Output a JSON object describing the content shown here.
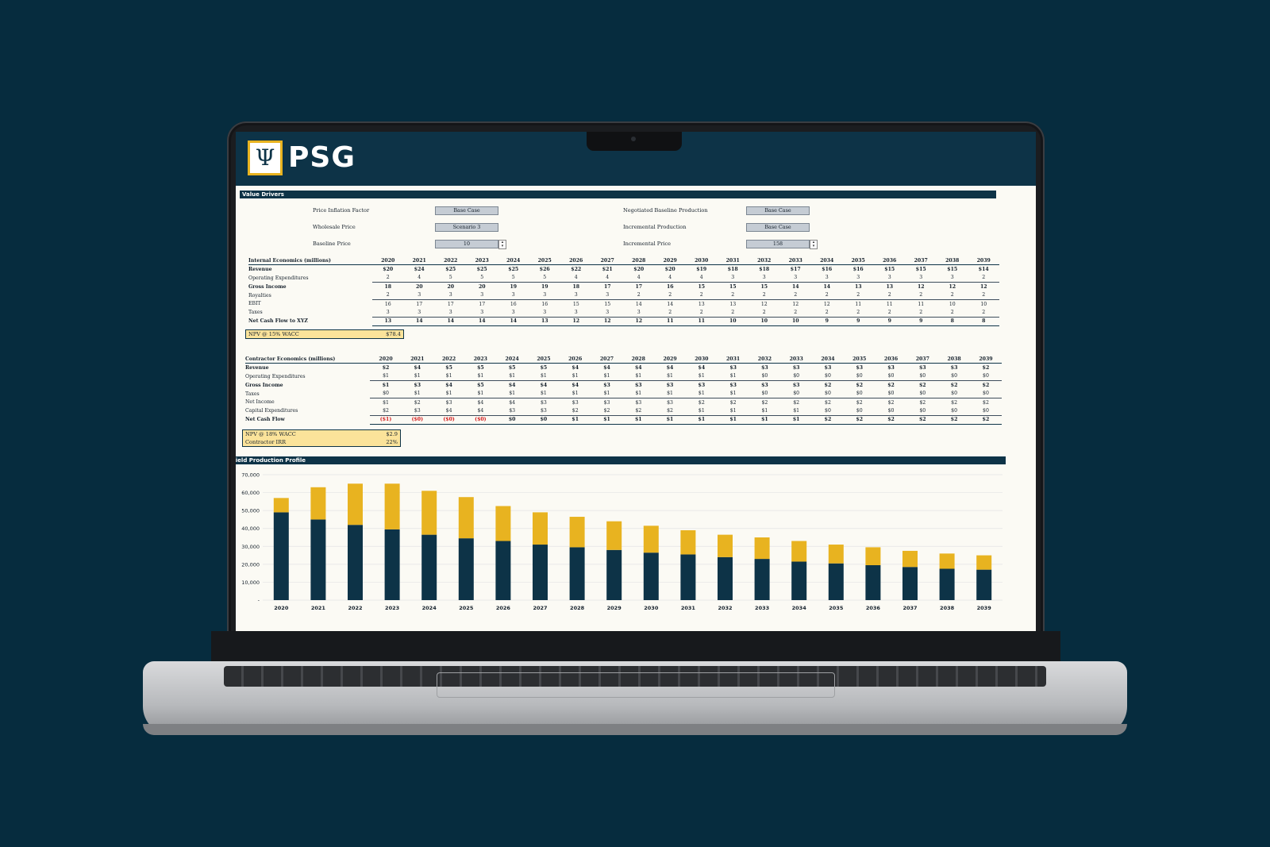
{
  "brand": {
    "name": "PSG",
    "logo_glyph": "Ψ",
    "accent": "#e8b320",
    "navy": "#0d3347"
  },
  "value_drivers": {
    "title": "Value Drivers",
    "left": [
      {
        "label": "Price Inflation Factor",
        "value": "Base Case"
      },
      {
        "label": "Wholesale Price",
        "value": "Scenario 3"
      },
      {
        "label": "Baseline Price",
        "value": "10"
      }
    ],
    "right": [
      {
        "label": "Negotiated Baseline Production",
        "value": "Base Case"
      },
      {
        "label": "Incremental Production",
        "value": "Base Case"
      },
      {
        "label": "Incremental Price",
        "value": "158"
      }
    ]
  },
  "internal": {
    "title": "Internal Economics (millions)",
    "years": [
      "2020",
      "2021",
      "2022",
      "2023",
      "2024",
      "2025",
      "2026",
      "2027",
      "2028",
      "2029",
      "2030",
      "2031",
      "2032",
      "2033",
      "2034",
      "2035",
      "2036",
      "2037",
      "2038",
      "2039"
    ],
    "rows": [
      {
        "label": "Revenue",
        "values": [
          "$20",
          "$24",
          "$25",
          "$25",
          "$25",
          "$26",
          "$22",
          "$21",
          "$20",
          "$20",
          "$19",
          "$18",
          "$18",
          "$17",
          "$16",
          "$16",
          "$15",
          "$15",
          "$15",
          "$14"
        ]
      },
      {
        "label": "Operating Expenditures",
        "values": [
          "2",
          "4",
          "5",
          "5",
          "5",
          "5",
          "4",
          "4",
          "4",
          "4",
          "4",
          "3",
          "3",
          "3",
          "3",
          "3",
          "3",
          "3",
          "3",
          "2"
        ]
      },
      {
        "label": "Gross Income",
        "values": [
          "18",
          "20",
          "20",
          "20",
          "19",
          "19",
          "18",
          "17",
          "17",
          "16",
          "15",
          "15",
          "15",
          "14",
          "14",
          "13",
          "13",
          "12",
          "12",
          "12"
        ]
      },
      {
        "label": "Royalties",
        "values": [
          "2",
          "3",
          "3",
          "3",
          "3",
          "3",
          "3",
          "3",
          "2",
          "2",
          "2",
          "2",
          "2",
          "2",
          "2",
          "2",
          "2",
          "2",
          "2",
          "2"
        ]
      },
      {
        "label": "EBIT",
        "values": [
          "16",
          "17",
          "17",
          "17",
          "16",
          "16",
          "15",
          "15",
          "14",
          "14",
          "13",
          "13",
          "12",
          "12",
          "12",
          "11",
          "11",
          "11",
          "10",
          "10"
        ]
      },
      {
        "label": "Taxes",
        "values": [
          "3",
          "3",
          "3",
          "3",
          "3",
          "3",
          "3",
          "3",
          "3",
          "2",
          "2",
          "2",
          "2",
          "2",
          "2",
          "2",
          "2",
          "2",
          "2",
          "2"
        ]
      },
      {
        "label": "Net Cash Flow to XYZ",
        "values": [
          "13",
          "14",
          "14",
          "14",
          "14",
          "13",
          "12",
          "12",
          "12",
          "11",
          "11",
          "10",
          "10",
          "10",
          "9",
          "9",
          "9",
          "9",
          "8",
          "8"
        ]
      }
    ],
    "npv_label": "NPV @ 15% WACC",
    "npv_value": "$78.4"
  },
  "contractor": {
    "title": "Contractor Economics (millions)",
    "rows": [
      {
        "label": "Revenue",
        "values": [
          "$2",
          "$4",
          "$5",
          "$5",
          "$5",
          "$5",
          "$4",
          "$4",
          "$4",
          "$4",
          "$4",
          "$3",
          "$3",
          "$3",
          "$3",
          "$3",
          "$3",
          "$3",
          "$3",
          "$2"
        ]
      },
      {
        "label": "Operating Expenditures",
        "values": [
          "$1",
          "$1",
          "$1",
          "$1",
          "$1",
          "$1",
          "$1",
          "$1",
          "$1",
          "$1",
          "$1",
          "$1",
          "$0",
          "$0",
          "$0",
          "$0",
          "$0",
          "$0",
          "$0",
          "$0"
        ]
      },
      {
        "label": "Gross Income",
        "values": [
          "$1",
          "$3",
          "$4",
          "$5",
          "$4",
          "$4",
          "$4",
          "$3",
          "$3",
          "$3",
          "$3",
          "$3",
          "$3",
          "$3",
          "$2",
          "$2",
          "$2",
          "$2",
          "$2",
          "$2"
        ]
      },
      {
        "label": "Taxes",
        "values": [
          "$0",
          "$1",
          "$1",
          "$1",
          "$1",
          "$1",
          "$1",
          "$1",
          "$1",
          "$1",
          "$1",
          "$1",
          "$0",
          "$0",
          "$0",
          "$0",
          "$0",
          "$0",
          "$0",
          "$0"
        ]
      },
      {
        "label": "Net Income",
        "values": [
          "$1",
          "$2",
          "$3",
          "$4",
          "$4",
          "$3",
          "$3",
          "$3",
          "$3",
          "$3",
          "$2",
          "$2",
          "$2",
          "$2",
          "$2",
          "$2",
          "$2",
          "$2",
          "$2",
          "$2"
        ]
      },
      {
        "label": "Capital Expenditures",
        "values": [
          "$2",
          "$3",
          "$4",
          "$4",
          "$3",
          "$3",
          "$2",
          "$2",
          "$2",
          "$2",
          "$1",
          "$1",
          "$1",
          "$1",
          "$0",
          "$0",
          "$0",
          "$0",
          "$0",
          "$0"
        ]
      },
      {
        "label": "Net Cash Flow",
        "values": [
          "($1)",
          "($0)",
          "($0)",
          "($0)",
          "$0",
          "$0",
          "$1",
          "$1",
          "$1",
          "$1",
          "$1",
          "$1",
          "$1",
          "$1",
          "$2",
          "$2",
          "$2",
          "$2",
          "$2",
          "$2"
        ]
      }
    ],
    "npv_label": "NPV @ 18% WACC",
    "npv_value": "$2.9",
    "irr_label": "Contractor IRR",
    "irr_value": "22%"
  },
  "chart_data": {
    "type": "bar",
    "title": "Field Production Profile",
    "stacked": true,
    "categories": [
      "2020",
      "2021",
      "2022",
      "2023",
      "2024",
      "2025",
      "2026",
      "2027",
      "2028",
      "2029",
      "2030",
      "2031",
      "2032",
      "2033",
      "2034",
      "2035",
      "2036",
      "2037",
      "2038",
      "2039"
    ],
    "series": [
      {
        "values": [
          49000,
          45000,
          42000,
          39500,
          36500,
          34500,
          33000,
          31000,
          29500,
          28000,
          26500,
          25500,
          24000,
          23000,
          21500,
          20500,
          19500,
          18500,
          17500,
          17000
        ],
        "color": "#0d3347"
      },
      {
        "values": [
          8000,
          18000,
          23000,
          25500,
          24500,
          23000,
          19500,
          18000,
          17000,
          16000,
          15000,
          13500,
          12500,
          12000,
          11500,
          10500,
          10000,
          9000,
          8500,
          8000
        ],
        "color": "#e8b320"
      }
    ],
    "ylim": [
      0,
      70000
    ],
    "yticks": [
      "-",
      "10,000",
      "20,000",
      "30,000",
      "40,000",
      "50,000",
      "60,000",
      "70,000"
    ],
    "grid": true
  }
}
